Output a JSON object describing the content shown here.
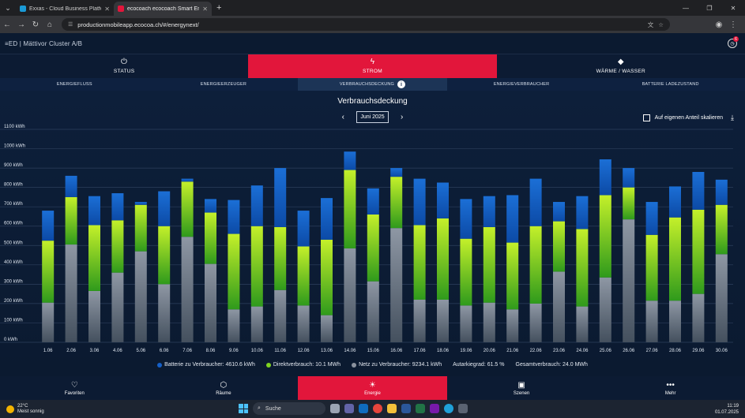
{
  "browser": {
    "tabs": [
      {
        "title": "Exxas - Cloud Business Platform",
        "favicon_color": "#1a9ad6",
        "active": false
      },
      {
        "title": "ecocoach ecocoach Smart Ener",
        "favicon_color": "#e2163b",
        "active": true
      }
    ],
    "url": "productionmobileapp.ecocoa.ch/#/energynext/",
    "new_tab": "+"
  },
  "app": {
    "logo": "≡ED | Mättivor Cluster A/B",
    "notification_count": "6"
  },
  "main_tabs": [
    {
      "label": "STATUS",
      "icon": "power-icon",
      "glyph": "⏻",
      "active": false
    },
    {
      "label": "STROM",
      "icon": "bolt-icon",
      "glyph": "ϟ",
      "active": true
    },
    {
      "label": "WÄRME / WASSER",
      "icon": "drop-icon",
      "glyph": "◆",
      "active": false
    }
  ],
  "sub_tabs": [
    {
      "label": "ENERGIEFLUSS",
      "active": false
    },
    {
      "label": "ENERGIEERZEUGER",
      "active": false
    },
    {
      "label": "VERBRAUCHSDECKUNG",
      "active": true
    },
    {
      "label": "ENERGIEVERBRAUCHER",
      "active": false
    },
    {
      "label": "BATTERIE LADEZUSTAND",
      "active": false
    }
  ],
  "info_glyph": "i",
  "chart_header": {
    "title": "Verbrauchsdeckung",
    "month": "Juni 2025",
    "prev": "‹",
    "next": "›",
    "scale_label": "Auf eigenen Anteil skalieren",
    "download_glyph": "⤓"
  },
  "chart_data": {
    "type": "bar",
    "stacked": true,
    "ylim": [
      0,
      1100
    ],
    "yticks": [
      0,
      100,
      200,
      300,
      400,
      500,
      600,
      700,
      800,
      900,
      1000,
      1100
    ],
    "ytick_labels": [
      "0 kWh",
      "100 kWh",
      "200 kWh",
      "300 kWh",
      "400 kWh",
      "500 kWh",
      "600 kWh",
      "700 kWh",
      "800 kWh",
      "900 kWh",
      "1000 kWh",
      "1100 kWh"
    ],
    "grid": true,
    "categories": [
      "1.06",
      "2.06",
      "3.06",
      "4.06",
      "5.06",
      "6.06",
      "7.06",
      "8.06",
      "9.06",
      "10.06",
      "11.06",
      "12.06",
      "13.06",
      "14.06",
      "15.06",
      "16.06",
      "17.06",
      "18.06",
      "19.06",
      "20.06",
      "21.06",
      "22.06",
      "23.06",
      "24.06",
      "25.06",
      "26.06",
      "27.06",
      "28.06",
      "29.06",
      "30.06"
    ],
    "series": [
      {
        "name": "Netz zu Verbraucher",
        "color": "#5c6470",
        "values": [
          205,
          505,
          265,
          360,
          470,
          300,
          545,
          405,
          170,
          185,
          270,
          190,
          140,
          485,
          315,
          590,
          220,
          220,
          190,
          205,
          170,
          200,
          365,
          185,
          335,
          635,
          215,
          215,
          250,
          455
        ]
      },
      {
        "name": "Direktverbrauch",
        "color": "#7fd420",
        "values": [
          320,
          245,
          340,
          270,
          240,
          300,
          285,
          265,
          390,
          415,
          325,
          305,
          390,
          405,
          345,
          265,
          385,
          420,
          345,
          390,
          345,
          400,
          260,
          400,
          425,
          165,
          340,
          430,
          435,
          255
        ]
      },
      {
        "name": "Batterie zu Verbraucher",
        "color": "#1560c8",
        "values": [
          155,
          110,
          150,
          140,
          15,
          180,
          15,
          70,
          175,
          210,
          305,
          185,
          215,
          95,
          135,
          45,
          240,
          185,
          205,
          160,
          245,
          245,
          100,
          170,
          185,
          100,
          170,
          160,
          195,
          130
        ]
      }
    ]
  },
  "legend": [
    {
      "text": "Batterie zu Verbraucher: 4610.6 kWh",
      "color": "#1560c8"
    },
    {
      "text": "Direktverbrauch: 10.1 MWh",
      "color": "#7fd420"
    },
    {
      "text": "Netz zu Verbraucher: 9234.1 kWh",
      "color": "#8a929e"
    },
    {
      "text": "Autarkiegrad: 61.5 %",
      "color": ""
    },
    {
      "text": "Gesamtverbrauch: 24.0 MWh",
      "color": ""
    }
  ],
  "bottom_nav": [
    {
      "label": "Favoriten",
      "icon": "heart-icon",
      "glyph": "♡",
      "active": false
    },
    {
      "label": "Räume",
      "icon": "cube-icon",
      "glyph": "⬡",
      "active": false
    },
    {
      "label": "Energie",
      "icon": "energy-icon",
      "glyph": "☀",
      "active": true
    },
    {
      "label": "Szenen",
      "icon": "image-icon",
      "glyph": "▣",
      "active": false
    },
    {
      "label": "Mehr",
      "icon": "more-icon",
      "glyph": "•••",
      "active": false
    }
  ],
  "taskbar": {
    "temp": "22°C",
    "weather": "Meist sonnig",
    "search": "Suche",
    "time": "11:19",
    "date": "01.07.2025"
  }
}
